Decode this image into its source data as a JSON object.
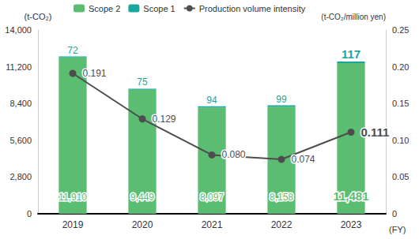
{
  "chart_data": {
    "type": "bar",
    "categories": [
      "2019",
      "2020",
      "2021",
      "2022",
      "2023"
    ],
    "x_label": "(FY)",
    "y_label": "(t-CO₂)",
    "y2_label": "(t-CO₂/million yen)",
    "stacked": true,
    "data_labels": true,
    "grid": false,
    "legend": "top",
    "series": [
      {
        "name": "Scope 2",
        "type": "bar",
        "color": "#5bbd72",
        "values": [
          11910,
          9449,
          8097,
          8158,
          11481
        ],
        "value_labels": [
          "11,910",
          "9,449",
          "8,097",
          "8,158",
          "11,481"
        ]
      },
      {
        "name": "Scope 1",
        "type": "bar",
        "color": "#17a79c",
        "values": [
          72,
          75,
          94,
          99,
          117
        ]
      },
      {
        "name": "Production volume intensity",
        "type": "line",
        "axis": "y2",
        "color": "#4d4d4d",
        "marker": "circle",
        "values": [
          0.191,
          0.129,
          0.08,
          0.074,
          0.111
        ],
        "value_labels": [
          "0.191",
          "0.129",
          "0.080",
          "0.074",
          "0.111"
        ]
      }
    ],
    "ylim": [
      0,
      14000
    ],
    "yticks": [
      0,
      {
        "value": 2800,
        "label": "2,800"
      },
      {
        "value": 5600,
        "label": "5,600"
      },
      {
        "value": 8400,
        "label": "8,400"
      },
      {
        "value": 11200,
        "label": "11,200"
      },
      {
        "value": 14000,
        "label": "14,000"
      }
    ],
    "y2lim": [
      0,
      0.25
    ],
    "y2ticks": [
      0,
      0.05,
      {
        "value": 0.1,
        "label": "0.10"
      },
      0.15,
      {
        "value": 0.2,
        "label": "0.20"
      },
      0.25
    ]
  }
}
